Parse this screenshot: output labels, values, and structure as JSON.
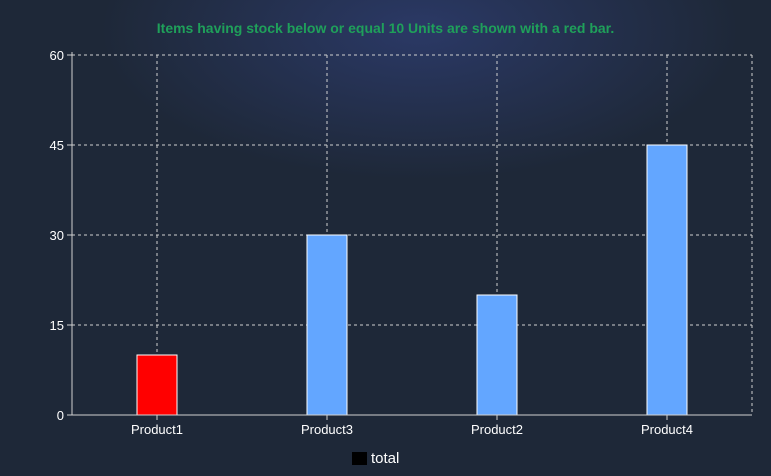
{
  "chart_data": {
    "type": "bar",
    "title": "Items having stock below or equal 10 Units are shown with a red bar.",
    "categories": [
      "Product1",
      "Product3",
      "Product2",
      "Product4"
    ],
    "series": [
      {
        "name": "total",
        "values": [
          10,
          30,
          20,
          45
        ]
      }
    ],
    "ylim": [
      0,
      60
    ],
    "yticks": [
      "0",
      "15",
      "30",
      "45",
      "60"
    ],
    "xlabel": "",
    "ylabel": "",
    "grid": true,
    "legend_position": "bottom",
    "threshold": 10,
    "colors": {
      "normal_bar": "#63a6ff",
      "low_stock_bar": "#ff0000",
      "grid": "#d0d0d0",
      "axis_text": "#ffffff",
      "title": "#1fa05a",
      "legend_swatch": "#000000"
    }
  }
}
